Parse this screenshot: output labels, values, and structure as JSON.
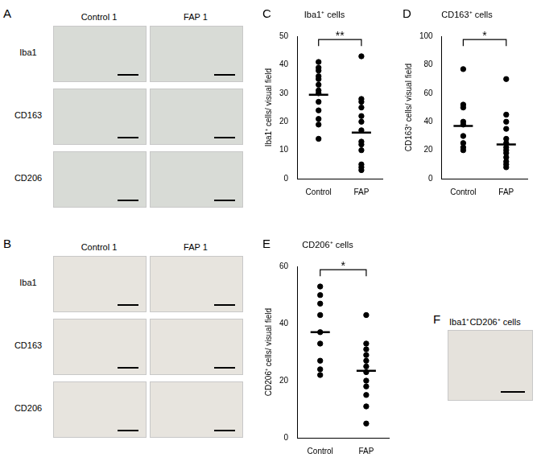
{
  "figure_panels": {
    "A": {
      "letter": "A",
      "columns": [
        "Control 1",
        "FAP 1"
      ],
      "rows": [
        "Iba1",
        "CD163",
        "CD206"
      ]
    },
    "B": {
      "letter": "B",
      "columns": [
        "Control 1",
        "FAP 1"
      ],
      "rows": [
        "Iba1",
        "CD163",
        "CD206"
      ]
    },
    "F": {
      "letter": "F",
      "label": "Iba1⁺CD206⁺ cells"
    }
  },
  "chart_data": [
    {
      "panel": "C",
      "type": "scatter",
      "title": "Iba1⁺ cells",
      "y_label": "Iba1⁺ cells/ visual field",
      "categories": [
        "Control",
        "FAP"
      ],
      "values": [
        [
          41,
          39,
          38,
          36,
          35,
          33,
          31,
          30,
          27,
          24,
          21,
          19,
          14
        ],
        [
          43,
          28,
          27,
          25,
          22,
          20,
          17,
          13,
          12,
          10,
          5,
          4,
          3
        ]
      ],
      "means": [
        29.5,
        16.2
      ],
      "annotation": "**",
      "color": "#000000",
      "ylim": [
        0,
        50
      ],
      "yticks": [
        0,
        10,
        20,
        30,
        40,
        50
      ],
      "grid": false
    },
    {
      "panel": "D",
      "type": "scatter",
      "title": "CD163⁺ cells",
      "y_label": "CD163⁺ cells/ visual field",
      "categories": [
        "Control",
        "FAP"
      ],
      "values": [
        [
          77,
          52,
          50,
          40,
          38,
          30,
          25,
          22,
          20
        ],
        [
          70,
          45,
          40,
          35,
          28,
          25,
          22,
          20,
          18,
          15,
          12,
          10,
          8
        ]
      ],
      "means": [
        37,
        24
      ],
      "annotation": "*",
      "color": "#000000",
      "ylim": [
        0,
        100
      ],
      "yticks": [
        0,
        20,
        40,
        60,
        80,
        100
      ],
      "grid": false
    },
    {
      "panel": "E",
      "type": "scatter",
      "title": "CD206⁺ cells",
      "y_label": "CD206⁺ cells/ visual field",
      "categories": [
        "Control",
        "FAP"
      ],
      "values": [
        [
          53,
          50,
          47,
          43,
          37,
          33,
          27,
          24,
          22
        ],
        [
          43,
          33,
          31,
          29,
          27,
          25,
          23,
          20,
          18,
          15,
          11,
          5
        ]
      ],
      "means": [
        37,
        23.5
      ],
      "annotation": "*",
      "color": "#000000",
      "ylim": [
        0,
        60
      ],
      "yticks": [
        0,
        20,
        40,
        60
      ],
      "grid": false
    }
  ]
}
